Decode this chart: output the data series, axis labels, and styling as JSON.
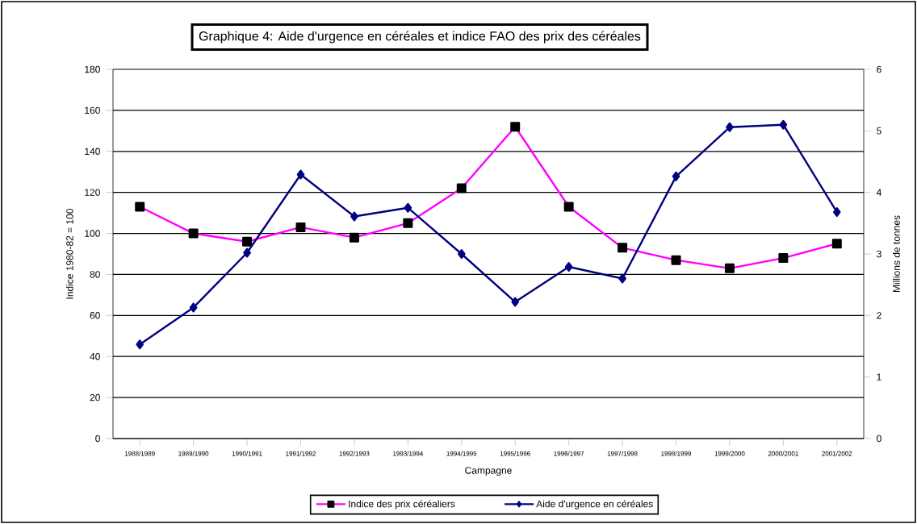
{
  "chart_data": {
    "type": "line",
    "title": "Graphique 4: Aide d'urgence en céréales et indice FAO des prix des céréales",
    "xlabel": "Campagne",
    "ylabel": "Indice 1980-82 = 100",
    "y2label": "Millions de tonnes",
    "categories": [
      "1988/1989",
      "1989/1990",
      "1990/1991",
      "1991/1992",
      "1992/1993",
      "1993/1994",
      "1994/1995",
      "1995/1996",
      "1996/1997",
      "1997/1998",
      "1998/1999",
      "1999/2000",
      "2000/2001",
      "2001/2002"
    ],
    "series": [
      {
        "name": "Indice des prix céréaliers",
        "color": "#ff00ff",
        "marker": "square",
        "values": [
          113,
          100,
          96,
          103,
          98,
          105,
          122,
          152,
          113,
          93,
          87,
          83,
          88,
          95
        ]
      },
      {
        "name": "Aide d'urgence en céréales",
        "color": "#000080",
        "marker": "diamond",
        "axis": "y2",
        "values": [
          1.53,
          2.13,
          3.02,
          4.29,
          3.61,
          3.75,
          3.0,
          2.22,
          2.79,
          2.6,
          4.26,
          5.06,
          5.1,
          3.68
        ]
      }
    ],
    "ylim": [
      0,
      180
    ],
    "yticks": [
      0,
      20,
      40,
      60,
      80,
      100,
      120,
      140,
      160,
      180
    ],
    "y2lim": [
      0,
      6
    ],
    "y2ticks": [
      0,
      1,
      2,
      3,
      4,
      5,
      6
    ],
    "grid": "y",
    "legend": "bottom",
    "line_style": "solid"
  }
}
